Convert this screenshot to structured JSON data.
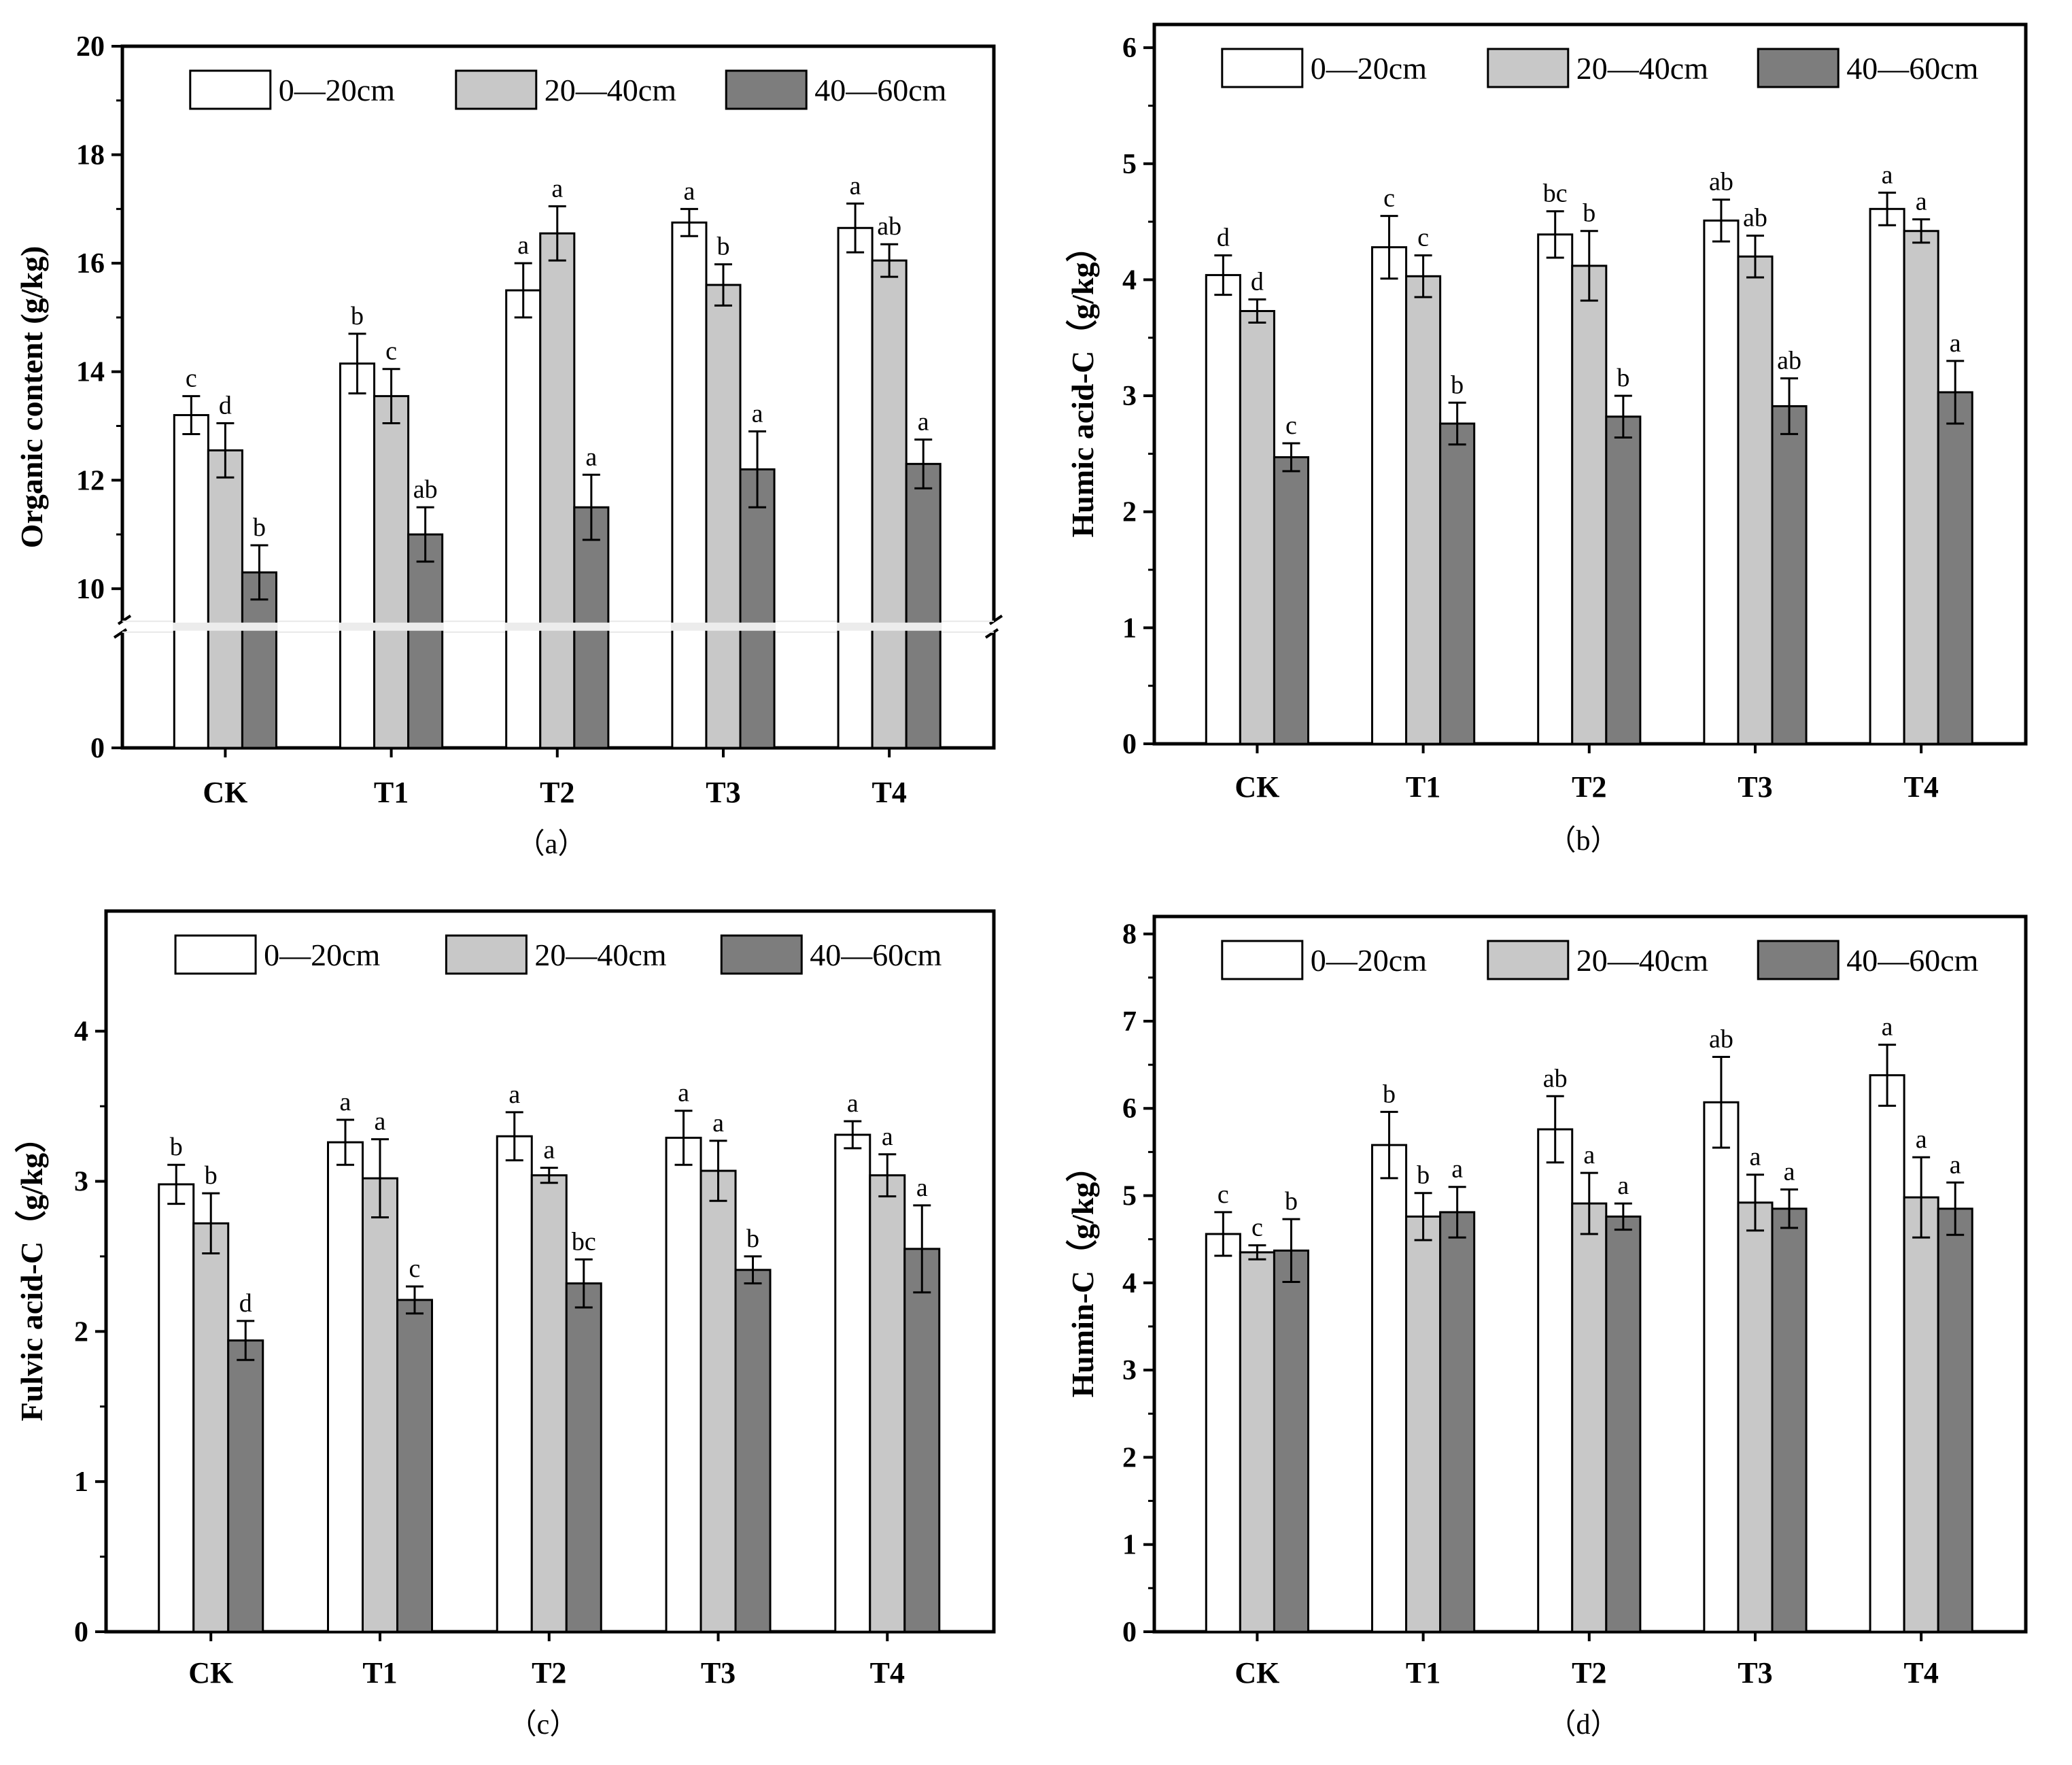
{
  "colors": {
    "series_0_20": "#ffffff",
    "series_20_40": "#c8c8c8",
    "series_40_60": "#7d7d7d",
    "stroke": "#000000"
  },
  "legend": [
    "0—20cm",
    "20—40cm",
    "40—60cm"
  ],
  "chart_data": [
    {
      "id": "a",
      "type": "bar",
      "panel_label": "（a）",
      "ylabel": "Organic content (g/kg)",
      "categories": [
        "CK",
        "T1",
        "T2",
        "T3",
        "T4"
      ],
      "y_ticks": [
        "0",
        "10",
        "12",
        "14",
        "16",
        "18",
        "20"
      ],
      "axis_break": true,
      "lower_range": [
        0,
        9.4
      ],
      "upper_range": [
        9.4,
        20
      ],
      "legend_position": "top-right",
      "series": [
        {
          "name": "0—20cm",
          "values": [
            13.2,
            14.15,
            15.5,
            16.75,
            16.65
          ],
          "errors": [
            0.35,
            0.55,
            0.5,
            0.25,
            0.45
          ],
          "labels": [
            "c",
            "b",
            "a",
            "a",
            "a"
          ]
        },
        {
          "name": "20—40cm",
          "values": [
            12.55,
            13.55,
            16.55,
            15.6,
            16.05
          ],
          "errors": [
            0.5,
            0.5,
            0.5,
            0.38,
            0.3
          ],
          "labels": [
            "d",
            "c",
            "a",
            "b",
            "ab"
          ]
        },
        {
          "name": "40—60cm",
          "values": [
            10.3,
            11.0,
            11.5,
            12.2,
            12.3
          ],
          "errors": [
            0.5,
            0.5,
            0.6,
            0.7,
            0.45
          ],
          "labels": [
            "b",
            "ab",
            "a",
            "a",
            "a"
          ]
        }
      ]
    },
    {
      "id": "b",
      "type": "bar",
      "panel_label": "（b）",
      "ylabel": "Humic acid-C（g/kg）",
      "categories": [
        "CK",
        "T1",
        "T2",
        "T3",
        "T4"
      ],
      "y_ticks": [
        "0",
        "1",
        "2",
        "3",
        "4",
        "5",
        "6"
      ],
      "ylim": [
        0,
        6.2
      ],
      "legend_position": "top-right",
      "series": [
        {
          "name": "0—20cm",
          "values": [
            4.04,
            4.28,
            4.39,
            4.51,
            4.61
          ],
          "errors": [
            0.17,
            0.27,
            0.2,
            0.18,
            0.14
          ],
          "labels": [
            "d",
            "c",
            "bc",
            "ab",
            "a"
          ]
        },
        {
          "name": "20—40cm",
          "values": [
            3.73,
            4.03,
            4.12,
            4.2,
            4.42
          ],
          "errors": [
            0.1,
            0.18,
            0.3,
            0.18,
            0.1
          ],
          "labels": [
            "d",
            "c",
            "b",
            "ab",
            "a"
          ]
        },
        {
          "name": "40—60cm",
          "values": [
            2.47,
            2.76,
            2.82,
            2.91,
            3.03
          ],
          "errors": [
            0.12,
            0.18,
            0.18,
            0.24,
            0.27
          ],
          "labels": [
            "c",
            "b",
            "b",
            "ab",
            "a"
          ]
        }
      ]
    },
    {
      "id": "c",
      "type": "bar",
      "panel_label": "（c）",
      "ylabel": "Fulvic acid-C（g/kg）",
      "categories": [
        "CK",
        "T1",
        "T2",
        "T3",
        "T4"
      ],
      "y_ticks": [
        "0",
        "1",
        "2",
        "3",
        "4"
      ],
      "ylim": [
        0,
        4.8
      ],
      "legend_position": "top-right",
      "series": [
        {
          "name": "0—20cm",
          "values": [
            2.98,
            3.26,
            3.3,
            3.29,
            3.31
          ],
          "errors": [
            0.13,
            0.15,
            0.16,
            0.18,
            0.09
          ],
          "labels": [
            "b",
            "a",
            "a",
            "a",
            "a"
          ]
        },
        {
          "name": "20—40cm",
          "values": [
            2.72,
            3.02,
            3.04,
            3.07,
            3.04
          ],
          "errors": [
            0.2,
            0.26,
            0.05,
            0.2,
            0.14
          ],
          "labels": [
            "b",
            "a",
            "a",
            "a",
            "a"
          ]
        },
        {
          "name": "40—60cm",
          "values": [
            1.94,
            2.21,
            2.32,
            2.41,
            2.55
          ],
          "errors": [
            0.13,
            0.09,
            0.16,
            0.09,
            0.29
          ],
          "labels": [
            "d",
            "c",
            "bc",
            "b",
            "a"
          ]
        }
      ]
    },
    {
      "id": "d",
      "type": "bar",
      "panel_label": "（d）",
      "ylabel": "Humin-C（g/kg）",
      "categories": [
        "CK",
        "T1",
        "T2",
        "T3",
        "T4"
      ],
      "y_ticks": [
        "0",
        "1",
        "2",
        "3",
        "4",
        "5",
        "6",
        "7",
        "8"
      ],
      "ylim": [
        0,
        8.2
      ],
      "legend_position": "top-right",
      "series": [
        {
          "name": "0—20cm",
          "values": [
            4.56,
            5.58,
            5.76,
            6.07,
            6.38
          ],
          "errors": [
            0.25,
            0.38,
            0.38,
            0.52,
            0.35
          ],
          "labels": [
            "c",
            "b",
            "ab",
            "ab",
            "a"
          ]
        },
        {
          "name": "20—40cm",
          "values": [
            4.35,
            4.76,
            4.91,
            4.92,
            4.98
          ],
          "errors": [
            0.08,
            0.27,
            0.35,
            0.32,
            0.46
          ],
          "labels": [
            "c",
            "b",
            "a",
            "a",
            "a"
          ]
        },
        {
          "name": "40—60cm",
          "values": [
            4.37,
            4.81,
            4.76,
            4.85,
            4.85
          ],
          "errors": [
            0.36,
            0.29,
            0.15,
            0.22,
            0.3
          ],
          "labels": [
            "b",
            "a",
            "a",
            "a",
            "a"
          ]
        }
      ]
    }
  ]
}
